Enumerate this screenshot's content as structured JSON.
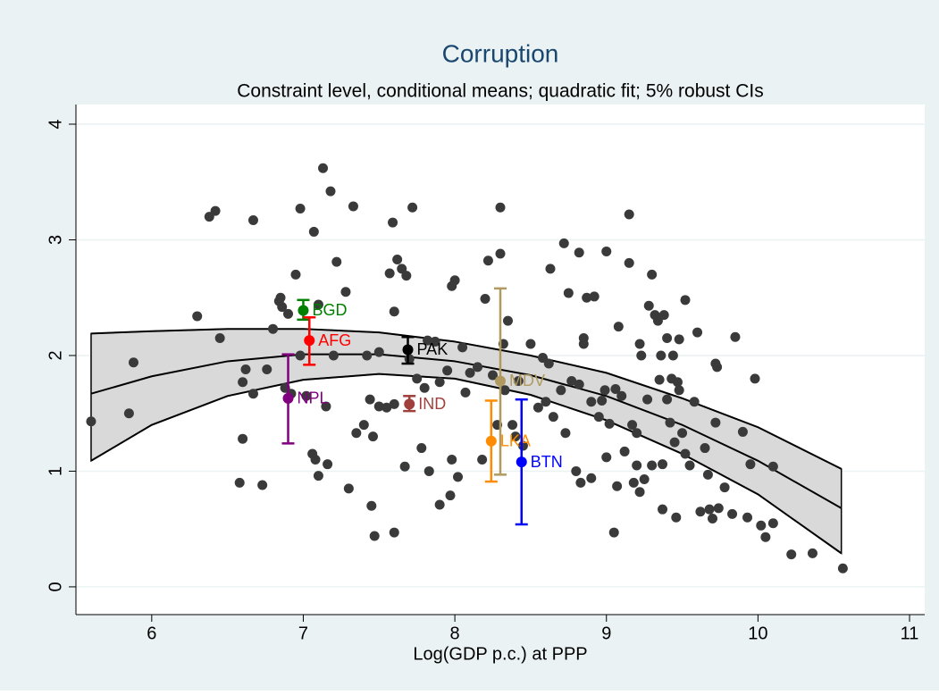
{
  "chart_data": {
    "type": "scatter",
    "title": "Corruption",
    "subtitle": "Constraint level, conditional means; quadratic fit; 5% robust CIs",
    "x_label": "Log(GDP p.c.) at PPP",
    "xlim": [
      5.5,
      11.1
    ],
    "ylim": [
      -0.24,
      4.17
    ],
    "xticks": [
      6,
      7,
      8,
      9,
      10,
      11
    ],
    "yticks": [
      0,
      1,
      2,
      3,
      4
    ],
    "grid": true,
    "scatter": {
      "color": "#3a3a3a",
      "x": [
        5.6,
        5.85,
        5.88,
        6.3,
        6.38,
        6.42,
        6.45,
        6.58,
        6.6,
        6.6,
        6.62,
        6.67,
        6.67,
        6.73,
        6.76,
        6.8,
        6.84,
        6.85,
        6.86,
        6.88,
        6.9,
        6.92,
        6.95,
        6.98,
        6.98,
        7.02,
        7.06,
        7.07,
        7.08,
        7.1,
        7.1,
        7.13,
        7.15,
        7.16,
        7.18,
        7.2,
        7.22,
        7.28,
        7.3,
        7.33,
        7.35,
        7.4,
        7.42,
        7.44,
        7.45,
        7.46,
        7.47,
        7.5,
        7.5,
        7.55,
        7.57,
        7.59,
        7.6,
        7.6,
        7.6,
        7.62,
        7.65,
        7.67,
        7.68,
        7.7,
        7.72,
        7.75,
        7.78,
        7.8,
        7.82,
        7.83,
        7.87,
        7.9,
        7.9,
        7.95,
        7.97,
        7.98,
        7.98,
        8.0,
        8.02,
        8.05,
        8.07,
        8.1,
        8.15,
        8.18,
        8.2,
        8.22,
        8.25,
        8.28,
        8.3,
        8.3,
        8.32,
        8.33,
        8.35,
        8.38,
        8.4,
        8.42,
        8.45,
        8.5,
        8.55,
        8.58,
        8.6,
        8.62,
        8.63,
        8.65,
        8.7,
        8.72,
        8.73,
        8.75,
        8.77,
        8.8,
        8.82,
        8.82,
        8.83,
        8.85,
        8.85,
        8.87,
        8.9,
        8.9,
        8.92,
        8.95,
        8.97,
        8.99,
        9.0,
        9.0,
        9.02,
        9.05,
        9.06,
        9.07,
        9.08,
        9.1,
        9.12,
        9.15,
        9.15,
        9.17,
        9.18,
        9.2,
        9.2,
        9.22,
        9.22,
        9.23,
        9.25,
        9.27,
        9.28,
        9.3,
        9.3,
        9.32,
        9.34,
        9.35,
        9.36,
        9.37,
        9.37,
        9.38,
        9.4,
        9.4,
        9.42,
        9.43,
        9.44,
        9.45,
        9.46,
        9.47,
        9.48,
        9.48,
        9.5,
        9.52,
        9.52,
        9.55,
        9.58,
        9.6,
        9.62,
        9.65,
        9.67,
        9.68,
        9.7,
        9.72,
        9.72,
        9.73,
        9.74,
        9.78,
        9.83,
        9.85,
        9.9,
        9.93,
        9.95,
        9.98,
        10.02,
        10.05,
        10.1,
        10.1,
        10.22,
        10.36,
        10.56
      ],
      "values": [
        1.43,
        1.5,
        1.94,
        2.34,
        3.2,
        3.25,
        2.15,
        0.9,
        1.28,
        1.77,
        1.88,
        3.17,
        1.67,
        0.88,
        1.88,
        2.23,
        2.47,
        2.5,
        2.42,
        1.72,
        2.36,
        1.67,
        2.7,
        3.27,
        2.0,
        1.65,
        1.15,
        3.07,
        1.1,
        0.96,
        2.44,
        3.62,
        1.56,
        1.06,
        3.42,
        2.0,
        2.81,
        2.55,
        0.85,
        3.29,
        1.33,
        1.4,
        2.0,
        1.62,
        0.7,
        1.3,
        0.44,
        2.03,
        1.56,
        1.55,
        2.71,
        3.15,
        0.47,
        2.38,
        1.58,
        2.83,
        2.75,
        1.04,
        2.69,
        1.97,
        3.28,
        1.8,
        1.2,
        1.72,
        2.13,
        1.0,
        2.12,
        0.71,
        1.77,
        1.87,
        0.79,
        2.6,
        1.1,
        2.65,
        0.95,
        2.07,
        1.68,
        1.85,
        1.9,
        1.1,
        2.49,
        2.82,
        1.83,
        1.4,
        3.28,
        2.88,
        2.1,
        1.7,
        2.3,
        1.4,
        1.3,
        1.78,
        1.22,
        2.1,
        1.55,
        1.98,
        1.6,
        1.93,
        2.75,
        1.47,
        1.7,
        2.97,
        1.33,
        2.54,
        1.78,
        1.0,
        1.75,
        2.89,
        0.9,
        2.15,
        2.1,
        2.5,
        0.94,
        1.6,
        2.51,
        1.47,
        1.61,
        1.7,
        2.9,
        1.12,
        1.41,
        0.47,
        1.71,
        0.87,
        2.25,
        1.65,
        1.17,
        3.22,
        2.8,
        1.4,
        0.9,
        1.05,
        1.33,
        2.1,
        0.82,
        2.0,
        0.93,
        1.62,
        2.43,
        1.05,
        2.7,
        2.35,
        2.3,
        1.79,
        2.0,
        0.67,
        1.06,
        2.35,
        2.15,
        1.62,
        1.42,
        1.8,
        2.0,
        1.25,
        0.6,
        1.77,
        1.7,
        2.14,
        1.33,
        2.48,
        1.15,
        1.05,
        1.6,
        2.2,
        0.65,
        1.2,
        0.97,
        0.67,
        0.59,
        1.93,
        1.42,
        1.9,
        0.68,
        0.86,
        0.63,
        2.16,
        1.34,
        0.6,
        1.06,
        1.8,
        0.53,
        0.43,
        1.04,
        0.55,
        0.28,
        0.29,
        0.16
      ]
    },
    "fit": {
      "color": "#000000",
      "band_color": "#d9d9d9",
      "x": [
        5.6,
        6.0,
        6.5,
        7.0,
        7.5,
        8.0,
        8.5,
        9.0,
        9.5,
        10.0,
        10.55
      ],
      "values": [
        1.67,
        1.82,
        1.95,
        2.01,
        2.01,
        1.95,
        1.83,
        1.65,
        1.4,
        1.09,
        0.68
      ],
      "upper": [
        2.19,
        2.21,
        2.23,
        2.23,
        2.2,
        2.12,
        2.0,
        1.85,
        1.63,
        1.38,
        1.02
      ],
      "lower": [
        1.09,
        1.4,
        1.65,
        1.79,
        1.84,
        1.8,
        1.66,
        1.44,
        1.15,
        0.8,
        0.29
      ]
    },
    "highlights": {
      "labels": [
        "BGD",
        "AFG",
        "PAK",
        "NPL",
        "IND",
        "MDV",
        "LKA",
        "BTN"
      ],
      "colors": [
        "#008000",
        "#ff0000",
        "#000000",
        "#800080",
        "#a0403c",
        "#b09a60",
        "#ff8c00",
        "#0000ff"
      ],
      "x": [
        7.0,
        7.04,
        7.69,
        6.9,
        7.7,
        8.3,
        8.24,
        8.44
      ],
      "values": [
        2.39,
        2.13,
        2.05,
        1.63,
        1.58,
        1.78,
        1.26,
        1.08
      ],
      "ci_low": [
        2.31,
        1.92,
        1.93,
        1.24,
        1.52,
        0.97,
        0.91,
        0.54
      ],
      "ci_high": [
        2.48,
        2.33,
        2.16,
        2.01,
        1.65,
        2.58,
        1.61,
        1.62
      ]
    }
  }
}
